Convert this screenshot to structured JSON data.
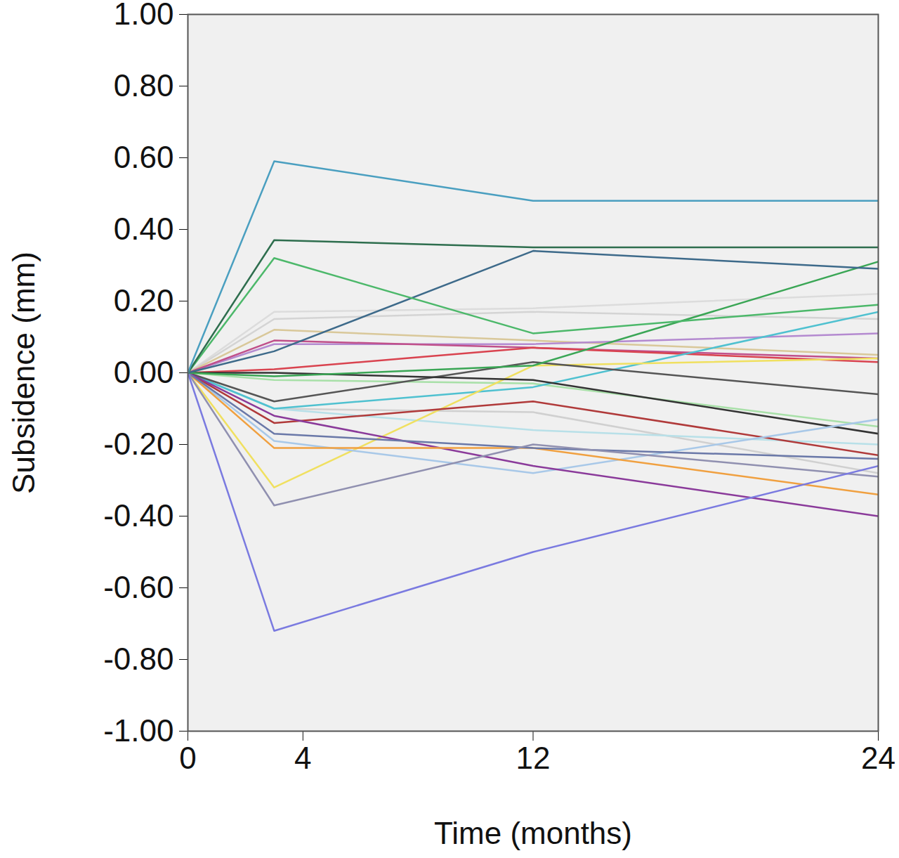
{
  "chart_data": {
    "type": "line",
    "x_label": "Time (months)",
    "y_label": "Subsidence (mm)",
    "x": [
      0,
      3,
      12,
      24
    ],
    "xlim": [
      0,
      24
    ],
    "xticks": [
      0,
      4,
      12,
      24
    ],
    "ylim": [
      -1,
      1
    ],
    "yticks": [
      {
        "value": -1,
        "label": "-1.00"
      },
      {
        "value": -0.8,
        "label": "-0.80"
      },
      {
        "value": -0.6,
        "label": "-0.60"
      },
      {
        "value": -0.4,
        "label": "-0.40"
      },
      {
        "value": -0.2,
        "label": "-0.20"
      },
      {
        "value": 0,
        "label": "0.00"
      },
      {
        "value": 0.2,
        "label": "0.20"
      },
      {
        "value": 0.4,
        "label": "0.40"
      },
      {
        "value": 0.6,
        "label": "0.60"
      },
      {
        "value": 0.8,
        "label": "0.80"
      },
      {
        "value": 1,
        "label": "1.00"
      }
    ],
    "grid": false,
    "series": [
      {
        "color": "#dcdcdc",
        "values": [
          0,
          0.17,
          0.18,
          0.22
        ]
      },
      {
        "color": "#d4d4d4",
        "values": [
          0,
          0.15,
          0.17,
          0.15
        ]
      },
      {
        "color": "#d0d0d0",
        "values": [
          0,
          -0.1,
          -0.11,
          -0.28
        ]
      },
      {
        "color": "#b8e0e8",
        "values": [
          0,
          -0.1,
          -0.16,
          -0.2
        ]
      },
      {
        "color": "#a8e0a8",
        "values": [
          0,
          -0.02,
          -0.03,
          -0.15
        ]
      },
      {
        "color": "#d9c89a",
        "values": [
          0,
          0.12,
          0.09,
          0.05
        ]
      },
      {
        "color": "#b48ad0",
        "values": [
          0,
          0.08,
          0.08,
          0.11
        ]
      },
      {
        "color": "#c0508a",
        "values": [
          0,
          0.09,
          0.07,
          0.04
        ]
      },
      {
        "color": "#d9434f",
        "values": [
          0,
          0.01,
          0.07,
          0.03
        ]
      },
      {
        "color": "#4fc1d0",
        "values": [
          0,
          -0.1,
          -0.04,
          0.17
        ]
      },
      {
        "color": "#f0e060",
        "values": [
          0,
          -0.32,
          0.02,
          0.04
        ]
      },
      {
        "color": "#555555",
        "values": [
          0,
          -0.08,
          0.03,
          -0.06
        ]
      },
      {
        "color": "#333333",
        "values": [
          0,
          0.0,
          -0.02,
          -0.17
        ]
      },
      {
        "color": "#b03a3a",
        "values": [
          0,
          -0.14,
          -0.08,
          -0.23
        ]
      },
      {
        "color": "#a8c8e8",
        "values": [
          0,
          -0.19,
          -0.28,
          -0.13
        ]
      },
      {
        "color": "#8a3a9a",
        "values": [
          0,
          -0.12,
          -0.26,
          -0.4
        ]
      },
      {
        "color": "#f0a040",
        "values": [
          0,
          -0.21,
          -0.21,
          -0.34
        ]
      },
      {
        "color": "#6a78a8",
        "values": [
          0,
          -0.17,
          -0.21,
          -0.24
        ]
      },
      {
        "color": "#9090b0",
        "values": [
          0,
          -0.37,
          -0.2,
          -0.29
        ]
      },
      {
        "color": "#7a7ae0",
        "values": [
          0,
          -0.72,
          -0.5,
          -0.26
        ]
      },
      {
        "color": "#3aa655",
        "values": [
          0,
          -0.01,
          0.02,
          0.31
        ]
      },
      {
        "color": "#3d6a8a",
        "values": [
          0,
          0.06,
          0.34,
          0.29
        ]
      },
      {
        "color": "#4cb86a",
        "values": [
          0,
          0.32,
          0.11,
          0.19
        ]
      },
      {
        "color": "#2e6e4e",
        "values": [
          0,
          0.37,
          0.35,
          0.35
        ]
      },
      {
        "color": "#4a9fc0",
        "values": [
          0,
          0.59,
          0.48,
          0.48
        ]
      }
    ]
  }
}
